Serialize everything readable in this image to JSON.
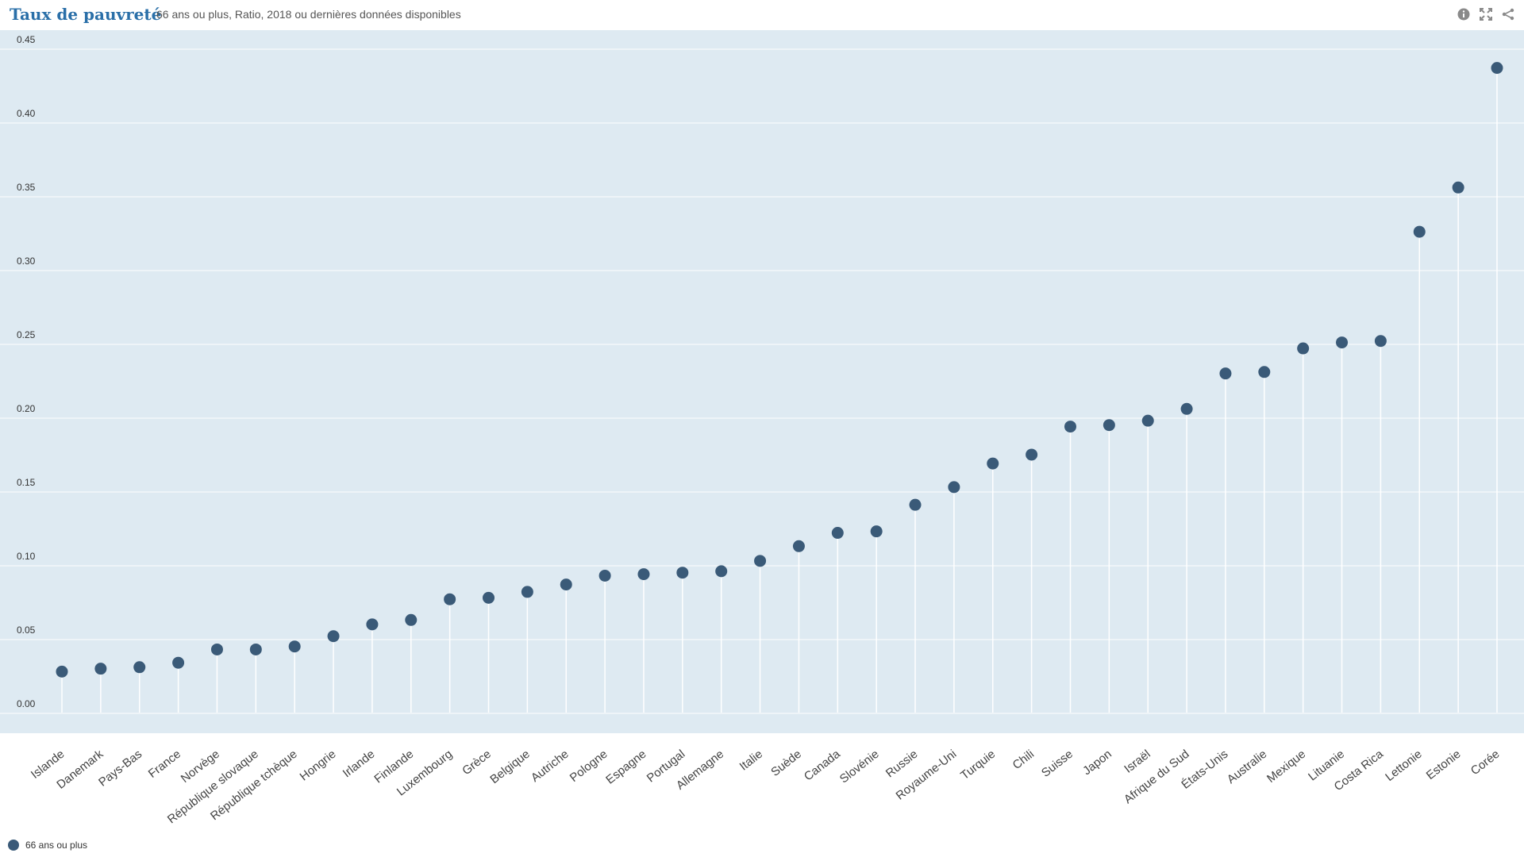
{
  "header": {
    "title": "Taux de pauvreté",
    "subtitle": "66 ans ou plus, Ratio, 2018 ou dernières données disponibles",
    "icons": [
      "info-icon",
      "expand-icon",
      "share-icon"
    ]
  },
  "legend": {
    "label": "66 ans ou plus"
  },
  "colors": {
    "plot_bg": "#deeaf2",
    "marker": "#3a5a78",
    "stem": "#ffffff",
    "grid": "#ffffff",
    "title": "#2a6fa8"
  },
  "chart_data": {
    "type": "scatter",
    "title": "Taux de pauvreté",
    "subtitle": "66 ans ou plus, Ratio, 2018 ou dernières données disponibles",
    "ylim": [
      0,
      0.45
    ],
    "yticks": [
      "0.00",
      "0.05",
      "0.10",
      "0.15",
      "0.20",
      "0.25",
      "0.30",
      "0.35",
      "0.40",
      "0.45"
    ],
    "grid": true,
    "legend_position": "bottom-left",
    "categories": [
      "Islande",
      "Danemark",
      "Pays-Bas",
      "France",
      "Norvège",
      "République slovaque",
      "République tchèque",
      "Hongrie",
      "Irlande",
      "Finlande",
      "Luxembourg",
      "Grèce",
      "Belgique",
      "Autriche",
      "Pologne",
      "Espagne",
      "Portugal",
      "Allemagne",
      "Italie",
      "Suède",
      "Canada",
      "Slovénie",
      "Russie",
      "Royaume-Uni",
      "Turquie",
      "Chili",
      "Suisse",
      "Japon",
      "Israël",
      "Afrique du Sud",
      "États-Unis",
      "Australie",
      "Mexique",
      "Lituanie",
      "Costa Rica",
      "Lettonie",
      "Estonie",
      "Corée"
    ],
    "series": [
      {
        "name": "66 ans ou plus",
        "values": [
          0.024,
          0.026,
          0.027,
          0.03,
          0.039,
          0.039,
          0.041,
          0.048,
          0.056,
          0.059,
          0.073,
          0.074,
          0.078,
          0.083,
          0.089,
          0.09,
          0.091,
          0.092,
          0.099,
          0.109,
          0.118,
          0.119,
          0.137,
          0.149,
          0.165,
          0.171,
          0.19,
          0.191,
          0.194,
          0.202,
          0.226,
          0.227,
          0.243,
          0.247,
          0.248,
          0.322,
          0.352,
          0.433
        ]
      }
    ]
  }
}
